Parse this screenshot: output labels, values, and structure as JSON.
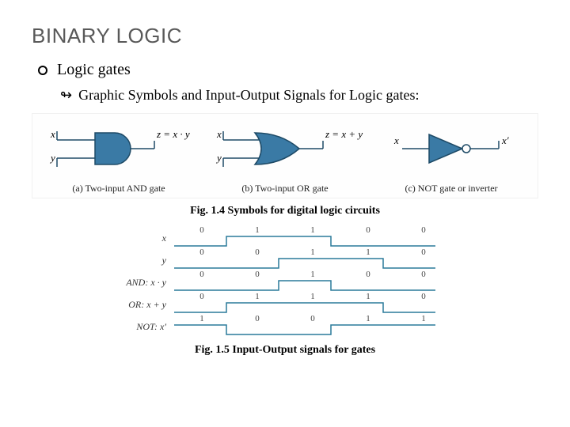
{
  "title": "BINARY LOGIC",
  "bullet1": "Logic gates",
  "bullet2": "Graphic Symbols and Input-Output Signals for Logic gates:",
  "gates": {
    "and": {
      "inputs": [
        "x",
        "y"
      ],
      "output_expr": "z = x · y",
      "caption": "(a) Two-input AND gate",
      "fill": "#3a7aa5",
      "stroke": "#1e4a66"
    },
    "or": {
      "inputs": [
        "x",
        "y"
      ],
      "output_expr": "z = x + y",
      "caption": "(b) Two-input OR gate",
      "fill": "#3a7aa5",
      "stroke": "#1e4a66"
    },
    "not": {
      "input": "x",
      "output_expr": "x′",
      "caption": "(c) NOT gate or inverter",
      "fill": "#3a7aa5",
      "stroke": "#1e4a66"
    }
  },
  "fig1_caption": "Fig. 1.4 Symbols for digital logic circuits",
  "timing": {
    "segments": 5,
    "high_color": "#2a7a9a",
    "low_color": "#2a7a9a",
    "stroke_width": 1.5,
    "rows": [
      {
        "label": "x",
        "values": [
          0,
          1,
          1,
          0,
          0
        ]
      },
      {
        "label": "y",
        "values": [
          0,
          0,
          1,
          1,
          0
        ]
      },
      {
        "label": "AND: x · y",
        "values": [
          0,
          0,
          1,
          0,
          0
        ]
      },
      {
        "label": "OR: x + y",
        "values": [
          0,
          1,
          1,
          1,
          0
        ]
      },
      {
        "label": "NOT: x′",
        "values": [
          1,
          0,
          0,
          1,
          1
        ]
      }
    ]
  },
  "fig2_caption": "Fig. 1.5 Input-Output signals for gates"
}
